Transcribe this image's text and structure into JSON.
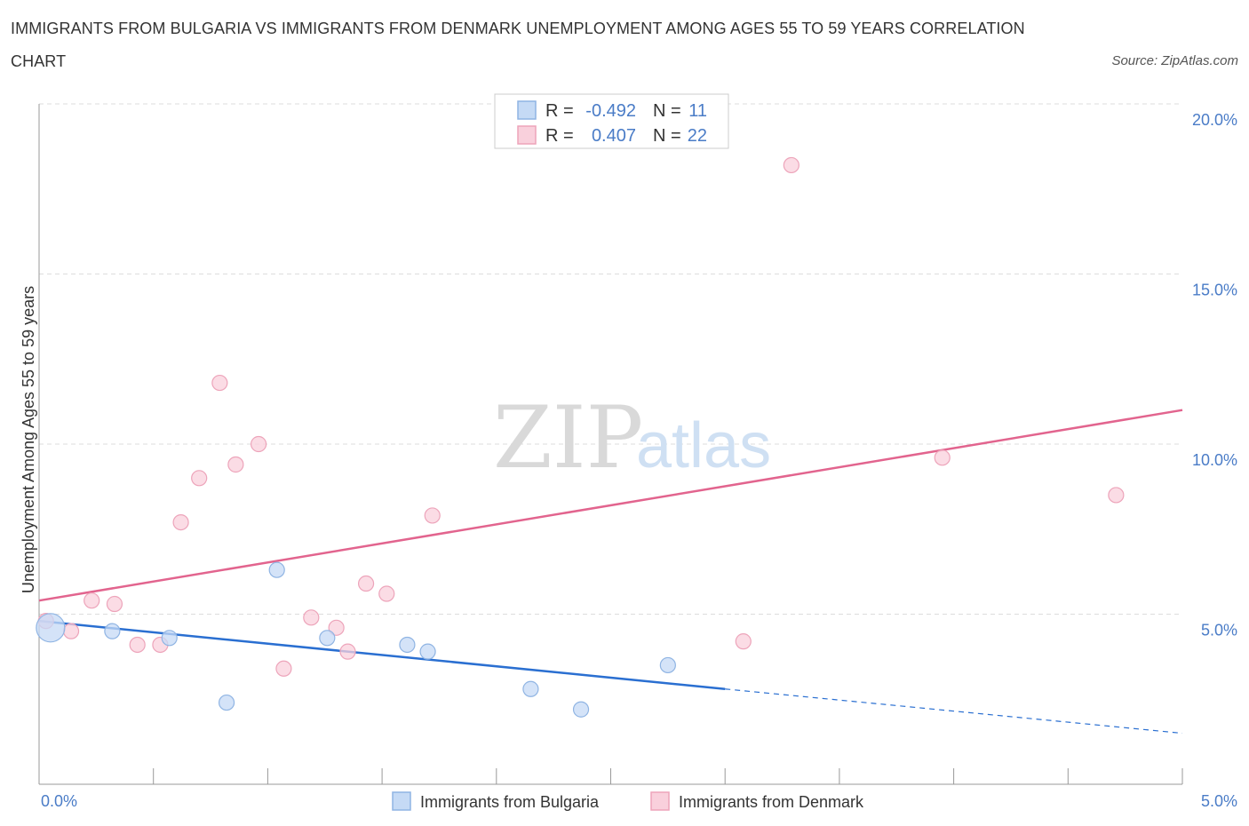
{
  "title": "IMMIGRANTS FROM BULGARIA VS IMMIGRANTS FROM DENMARK UNEMPLOYMENT AMONG AGES 55 TO 59 YEARS CORRELATION CHART",
  "source": "Source: ZipAtlas.com",
  "watermark": {
    "zip": "ZIP",
    "atlas": "atlas"
  },
  "colors": {
    "bulgaria_fill": "#c5daf5",
    "bulgaria_stroke": "#8fb4e3",
    "bulgaria_line": "#2a6fd1",
    "denmark_fill": "#f9d0dc",
    "denmark_stroke": "#eda4ba",
    "denmark_line": "#e2648e",
    "grid": "#dddddd",
    "tick_text": "#4a7cc7"
  },
  "stats_box": {
    "rows": [
      {
        "r_label": "R =",
        "r_value": "-0.492",
        "n_label": "N =",
        "n_value": "11"
      },
      {
        "r_label": "R =",
        "r_value": "0.407",
        "n_label": "N =",
        "n_value": "22"
      }
    ]
  },
  "legend": {
    "items": [
      {
        "label": "Immigrants from Bulgaria"
      },
      {
        "label": "Immigrants from Denmark"
      }
    ]
  },
  "chart_data": {
    "type": "scatter",
    "title": "IMMIGRANTS FROM BULGARIA VS IMMIGRANTS FROM DENMARK UNEMPLOYMENT AMONG AGES 55 TO 59 YEARS CORRELATION CHART",
    "xlabel": "",
    "ylabel": "Unemployment Among Ages 55 to 59 years",
    "xlim": [
      0,
      5
    ],
    "ylim": [
      0,
      20
    ],
    "x_tick_labels": [
      {
        "value": 0,
        "label": "0.0%"
      },
      {
        "value": 5,
        "label": "5.0%"
      }
    ],
    "y_tick_labels": [
      {
        "value": 5,
        "label": "5.0%"
      },
      {
        "value": 10,
        "label": "10.0%"
      },
      {
        "value": 15,
        "label": "15.0%"
      },
      {
        "value": 20,
        "label": "20.0%"
      }
    ],
    "y_gridlines": [
      5,
      10,
      15,
      20
    ],
    "grid": true,
    "legend_position": "bottom",
    "series": [
      {
        "name": "Immigrants from Bulgaria",
        "r": -0.492,
        "n": 11,
        "points": [
          {
            "x": 0.05,
            "y": 4.6,
            "big": true
          },
          {
            "x": 0.32,
            "y": 4.5
          },
          {
            "x": 0.57,
            "y": 4.3
          },
          {
            "x": 0.82,
            "y": 2.4
          },
          {
            "x": 1.04,
            "y": 6.3
          },
          {
            "x": 1.26,
            "y": 4.3
          },
          {
            "x": 1.61,
            "y": 4.1
          },
          {
            "x": 1.7,
            "y": 3.9
          },
          {
            "x": 2.15,
            "y": 2.8
          },
          {
            "x": 2.37,
            "y": 2.2
          },
          {
            "x": 2.75,
            "y": 3.5
          }
        ],
        "trend": {
          "x0": 0.0,
          "y0": 4.8,
          "x1": 3.0,
          "y1": 2.8,
          "dashed_to_x": 5.0,
          "dashed_to_y": 1.5
        }
      },
      {
        "name": "Immigrants from Denmark",
        "r": 0.407,
        "n": 22,
        "points": [
          {
            "x": 0.03,
            "y": 4.8
          },
          {
            "x": 0.14,
            "y": 4.5
          },
          {
            "x": 0.23,
            "y": 5.4
          },
          {
            "x": 0.33,
            "y": 5.3
          },
          {
            "x": 0.43,
            "y": 4.1
          },
          {
            "x": 0.53,
            "y": 4.1
          },
          {
            "x": 0.62,
            "y": 7.7
          },
          {
            "x": 0.7,
            "y": 9.0
          },
          {
            "x": 0.79,
            "y": 11.8
          },
          {
            "x": 0.86,
            "y": 9.4
          },
          {
            "x": 0.96,
            "y": 10.0
          },
          {
            "x": 1.07,
            "y": 3.4
          },
          {
            "x": 1.19,
            "y": 4.9
          },
          {
            "x": 1.3,
            "y": 4.6
          },
          {
            "x": 1.35,
            "y": 3.9
          },
          {
            "x": 1.43,
            "y": 5.9
          },
          {
            "x": 1.52,
            "y": 5.6
          },
          {
            "x": 1.72,
            "y": 7.9
          },
          {
            "x": 3.08,
            "y": 4.2
          },
          {
            "x": 3.29,
            "y": 18.2
          },
          {
            "x": 3.95,
            "y": 9.6
          },
          {
            "x": 4.71,
            "y": 8.5
          }
        ],
        "trend": {
          "x0": 0.0,
          "y0": 5.4,
          "x1": 5.0,
          "y1": 11.0
        }
      }
    ]
  }
}
